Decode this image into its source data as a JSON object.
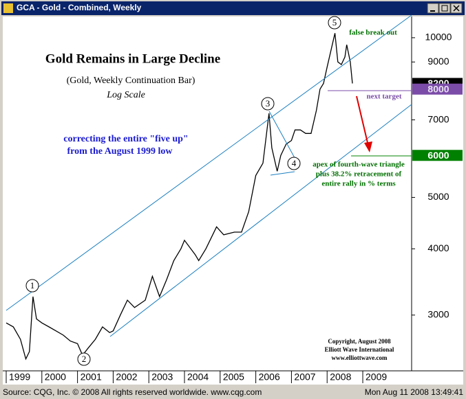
{
  "window_title": "GCA - Gold - Combined, Weekly",
  "status": {
    "source": "Source: CQG, Inc. © 2008 All rights reserved worldwide. www.cqg.com",
    "datetime": "Mon Aug 11 2008 13:49:41"
  },
  "chart_data": {
    "type": "line",
    "title": "Gold Remains in Large Decline",
    "subtitle": "(Gold, Weekly Continuation Bar)",
    "scale_note": "Log Scale",
    "log_scale": true,
    "color": "#000000",
    "x": [
      1999.0,
      1999.2,
      1999.4,
      1999.55,
      1999.65,
      1999.75,
      1999.85,
      2000.0,
      2000.2,
      2000.4,
      2000.6,
      2000.8,
      2001.0,
      2001.14,
      2001.3,
      2001.5,
      2001.7,
      2001.9,
      2002.0,
      2002.2,
      2002.4,
      2002.6,
      2002.9,
      2003.1,
      2003.3,
      2003.5,
      2003.7,
      2003.9,
      2004.0,
      2004.3,
      2004.4,
      2004.6,
      2004.9,
      2005.1,
      2005.4,
      2005.6,
      2005.8,
      2006.0,
      2006.2,
      2006.37,
      2006.45,
      2006.6,
      2006.7,
      2006.85,
      2007.0,
      2007.1,
      2007.25,
      2007.4,
      2007.55,
      2007.7,
      2007.8,
      2007.9,
      2008.0,
      2008.22,
      2008.3,
      2008.4,
      2008.5,
      2008.55,
      2008.65,
      2008.71
    ],
    "values": [
      2900,
      2850,
      2700,
      2480,
      2560,
      3250,
      2950,
      2900,
      2850,
      2800,
      2750,
      2680,
      2650,
      2520,
      2600,
      2700,
      2850,
      2780,
      2800,
      3000,
      3200,
      3100,
      3200,
      3550,
      3250,
      3500,
      3800,
      4000,
      4150,
      3900,
      3800,
      4000,
      4400,
      4250,
      4300,
      4300,
      4700,
      5500,
      5800,
      7200,
      6200,
      5600,
      6000,
      6300,
      6400,
      6700,
      6700,
      6600,
      6600,
      7300,
      8000,
      8200,
      8800,
      10200,
      9000,
      8900,
      9200,
      9700,
      9000,
      8200
    ],
    "xlim": [
      1999,
      2010.37
    ],
    "xticks": [
      {
        "value": 1999,
        "label": "1999"
      },
      {
        "value": 2000,
        "label": "2000"
      },
      {
        "value": 2001,
        "label": "2001"
      },
      {
        "value": 2002,
        "label": "2002"
      },
      {
        "value": 2003,
        "label": "2003"
      },
      {
        "value": 2004,
        "label": "2004"
      },
      {
        "value": 2005,
        "label": "2005"
      },
      {
        "value": 2006,
        "label": "2006"
      },
      {
        "value": 2007,
        "label": "2007"
      },
      {
        "value": 2008,
        "label": "2008"
      },
      {
        "value": 2009,
        "label": "2009"
      }
    ],
    "ylim": [
      2355,
      10965
    ],
    "yticks": [
      3000,
      4000,
      5000,
      7000,
      9000,
      10000
    ],
    "levels": [
      {
        "value": 8200,
        "color": "#000000",
        "text_color": "#ffffff"
      },
      {
        "value": 8000,
        "color": "#7b4ca8",
        "text_color": "#e8e0f0"
      },
      {
        "value": 6000,
        "color": "#008000",
        "text_color": "#ffffff"
      }
    ],
    "waves": [
      "1",
      "2",
      "3",
      "4",
      "5"
    ],
    "annotations": {
      "correcting": [
        "correcting the entire \"five up\"",
        "from the August 1999 low"
      ],
      "false_break": "false break out",
      "next_target": "next target",
      "apex": [
        "apex of fourth-wave triangle",
        "plus 38.2% retracement of",
        "entire rally in % terms"
      ],
      "copyright": [
        "Copyright, August 2008",
        "Elliott Wave International",
        "www.elliottwave.com"
      ]
    }
  }
}
